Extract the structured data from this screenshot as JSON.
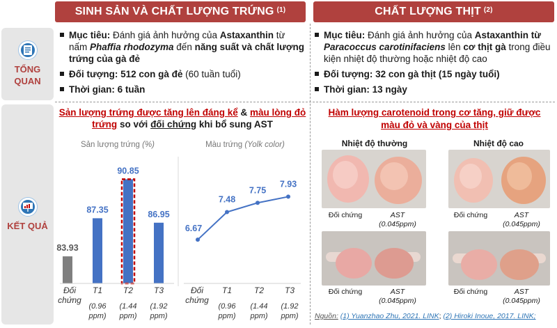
{
  "headers": {
    "left": "SINH SẢN VÀ CHẤT LƯỢNG TRỨNG",
    "left_ref": "(1)",
    "right": "CHẤT LƯỢNG THỊT",
    "right_ref": "(2)"
  },
  "categories": {
    "overview_line1": "TỔNG",
    "overview_line2": "QUAN",
    "results": "KẾT QUẢ"
  },
  "overview_left": {
    "goal_label": "Mục tiêu:",
    "goal_t1": " Đánh giá ảnh hưởng của ",
    "goal_b1": "Astaxanthin",
    "goal_t2": " từ nấm ",
    "goal_i1": "Phaffia rhodozyma",
    "goal_t3": " đến ",
    "goal_b2": "năng suất và chất lượng trứng của gà đẻ",
    "subject_label": "Đối tượng:",
    "subject_b": " 512 con gà đẻ",
    "subject_t": " (60 tuần tuổi)",
    "time_label": "Thời gian:",
    "time_value": " 6 tuần"
  },
  "overview_right": {
    "goal_label": "Mục tiêu:",
    "goal_t1": " Đánh giá ảnh hưởng của ",
    "goal_b1": "Astaxanthin từ",
    "goal_i1": "Paracoccus carotinifaciens",
    "goal_t2": " lên ",
    "goal_b2": "cơ thịt gà",
    "goal_t3": " trong điều kiện nhiệt độ thường hoặc nhiệt độ cao",
    "subject_label": "Đối tượng:",
    "subject_value": " 32 con gà thịt (15 ngày tuổi)",
    "time_label": "Thời gian:",
    "time_value": " 13 ngày"
  },
  "results_left": {
    "headline_p1": "Sản lượng trứng được tăng lên đáng kể",
    "headline_amp": " & ",
    "headline_p2": "màu lòng đỏ trứng",
    "headline_p3": " so với ",
    "headline_p4": "đối chứng",
    "headline_p5": " khi bổ sung AST"
  },
  "results_right": {
    "headline": "Hàm lượng carotenoid trong cơ tăng, giữ được màu đỏ và vàng của thịt",
    "col1_title": "Nhiệt độ thường",
    "col2_title": "Nhiệt độ cao",
    "cap_control": "Đối chứng",
    "cap_ast": "AST",
    "cap_ast_dose": "(0.045ppm)"
  },
  "x_labels": {
    "control_1": "Đối",
    "control_2": "chứng",
    "t1": "T1",
    "t2": "T2",
    "t3": "T3",
    "d1": "(0.96",
    "d2": "(1.44",
    "d3": "(1.92",
    "ppm": "ppm)"
  },
  "source": {
    "label": "Nguồn:",
    "ref1": "(1) Yuanzhao Zhu, 2021. LINK",
    "sep": "; ",
    "ref2": "(2) Hiroki Inoue, 2017. LINK;"
  },
  "colors": {
    "banner": "#b0413e",
    "bar": "#4472c4",
    "bar_control": "#7f7f7f",
    "highlight_border": "#c00000",
    "line": "#4472c4",
    "value_label": "#4472c4"
  },
  "chart_data": [
    {
      "type": "bar",
      "title": "Sản lượng trứng",
      "title_unit": "(%)",
      "categories": [
        "Đối chứng",
        "T1",
        "T2",
        "T3"
      ],
      "values": [
        83.93,
        87.35,
        90.85,
        86.95
      ],
      "ylim": [
        81.5,
        91
      ]
    },
    {
      "type": "line",
      "title": "Màu trứng",
      "title_unit": "(Yolk color)",
      "categories": [
        "Đối chứng",
        "T1",
        "T2",
        "T3"
      ],
      "values": [
        6.67,
        7.48,
        7.75,
        7.93
      ],
      "ylim": [
        6.0,
        8.0
      ]
    }
  ]
}
